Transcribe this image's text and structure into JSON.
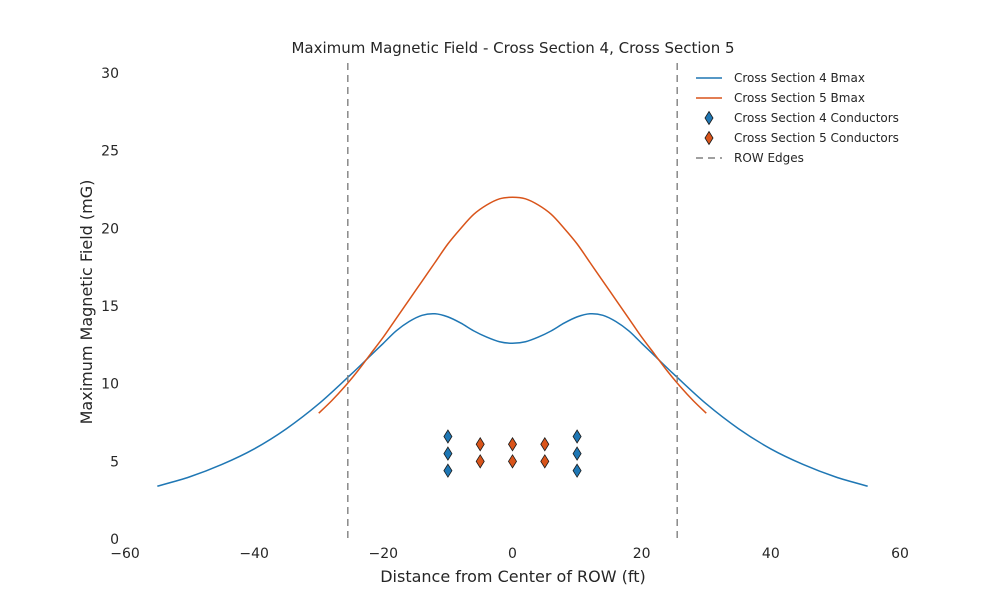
{
  "chart_data": {
    "type": "line",
    "title": "Maximum Magnetic Field - Cross Section 4, Cross Section 5",
    "xlabel": "Distance from Center of ROW (ft)",
    "ylabel": "Maximum Magnetic Field (mG)",
    "xlim": [
      -60,
      60
    ],
    "ylim": [
      0,
      30
    ],
    "xticks": [
      -60,
      -40,
      -20,
      0,
      20,
      40,
      60
    ],
    "xtick_labels": [
      "−60",
      "−40",
      "−20",
      "0",
      "20",
      "40",
      "60"
    ],
    "yticks": [
      0,
      5,
      10,
      15,
      20,
      25,
      30
    ],
    "ytick_labels": [
      "0",
      "5",
      "10",
      "15",
      "20",
      "25",
      "30"
    ],
    "grid": false,
    "legend_position": "top-right",
    "colors": {
      "cs4": "#1f77b4",
      "cs5": "#d9541a",
      "row": "#808080"
    },
    "series": [
      {
        "name": "Cross Section 4 Bmax",
        "kind": "line",
        "color": "#1f77b4",
        "x": [
          -55,
          -50,
          -45,
          -40,
          -35,
          -30,
          -25,
          -22,
          -20,
          -18,
          -16,
          -14,
          -12,
          -10,
          -8,
          -6,
          -4,
          -2,
          0,
          2,
          4,
          6,
          8,
          10,
          12,
          14,
          16,
          18,
          20,
          22,
          25,
          30,
          35,
          40,
          45,
          50,
          55
        ],
        "y": [
          3.4,
          4.0,
          4.8,
          5.8,
          7.1,
          8.7,
          10.6,
          11.8,
          12.6,
          13.4,
          14.0,
          14.4,
          14.5,
          14.3,
          13.9,
          13.4,
          13.0,
          12.7,
          12.6,
          12.7,
          13.0,
          13.4,
          13.9,
          14.3,
          14.5,
          14.4,
          14.0,
          13.4,
          12.6,
          11.8,
          10.6,
          8.7,
          7.1,
          5.8,
          4.8,
          4.0,
          3.4
        ]
      },
      {
        "name": "Cross Section 5 Bmax",
        "kind": "line",
        "color": "#d9541a",
        "x": [
          -30,
          -28,
          -26,
          -24,
          -22,
          -20,
          -18,
          -16,
          -14,
          -12,
          -10,
          -8,
          -6,
          -4,
          -2,
          0,
          2,
          4,
          6,
          8,
          10,
          12,
          14,
          16,
          18,
          20,
          22,
          24,
          26,
          28,
          30
        ],
        "y": [
          8.1,
          8.9,
          9.8,
          10.8,
          11.9,
          13.0,
          14.2,
          15.4,
          16.6,
          17.8,
          19.0,
          20.0,
          20.9,
          21.5,
          21.9,
          22.0,
          21.9,
          21.5,
          20.9,
          20.0,
          19.0,
          17.8,
          16.6,
          15.4,
          14.2,
          13.0,
          11.9,
          10.8,
          9.8,
          8.9,
          8.1
        ]
      },
      {
        "name": "Cross Section 4 Conductors",
        "kind": "marker",
        "color": "#1f77b4",
        "x": [
          -10,
          -10,
          -10,
          10,
          10,
          10
        ],
        "y": [
          6.6,
          5.5,
          4.4,
          6.6,
          5.5,
          4.4
        ]
      },
      {
        "name": "Cross Section 5 Conductors",
        "kind": "marker",
        "color": "#d9541a",
        "x": [
          -5,
          -5,
          0,
          0,
          5,
          5
        ],
        "y": [
          6.1,
          5.0,
          6.1,
          5.0,
          6.1,
          5.0
        ]
      },
      {
        "name": "ROW Edges",
        "kind": "vline",
        "color": "#808080",
        "x": [
          -25.5,
          25.5
        ]
      }
    ]
  }
}
